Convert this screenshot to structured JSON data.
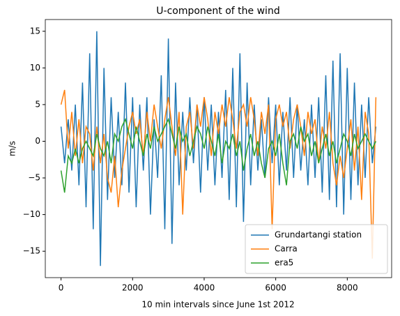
{
  "chart_data": {
    "type": "line",
    "title": "U-component of the wind",
    "xlabel": "10 min intervals since June 1st 2012",
    "ylabel": "m/s",
    "x": [
      0,
      100,
      200,
      300,
      400,
      500,
      600,
      700,
      800,
      900,
      1000,
      1100,
      1200,
      1300,
      1400,
      1500,
      1600,
      1700,
      1800,
      1900,
      2000,
      2100,
      2200,
      2300,
      2400,
      2500,
      2600,
      2700,
      2800,
      2900,
      3000,
      3100,
      3200,
      3300,
      3400,
      3500,
      3600,
      3700,
      3800,
      3900,
      4000,
      4100,
      4200,
      4300,
      4400,
      4500,
      4600,
      4700,
      4800,
      4900,
      5000,
      5100,
      5200,
      5300,
      5400,
      5500,
      5600,
      5700,
      5800,
      5900,
      6000,
      6100,
      6200,
      6300,
      6400,
      6500,
      6600,
      6700,
      6800,
      6900,
      7000,
      7100,
      7200,
      7300,
      7400,
      7500,
      7600,
      7700,
      7800,
      7900,
      8000,
      8100,
      8200,
      8300,
      8400,
      8500,
      8600,
      8700,
      8800
    ],
    "series": [
      {
        "name": "Grundartangi station",
        "color": "#1f77b4",
        "values": [
          2,
          -3,
          3,
          -4,
          5,
          -6,
          8,
          -9,
          12,
          -12,
          15,
          -17,
          10,
          -8,
          6,
          -5,
          4,
          -6,
          8,
          -7,
          6,
          -9,
          5,
          -4,
          6,
          -10,
          3,
          -5,
          9,
          -12,
          14,
          -14,
          8,
          -6,
          4,
          -4,
          6,
          -3,
          5,
          -7,
          6,
          -4,
          5,
          -6,
          4,
          -5,
          7,
          -8,
          10,
          -9,
          12,
          -11,
          8,
          -6,
          5,
          -4,
          3,
          -5,
          6,
          -3,
          5,
          -6,
          4,
          -4,
          6,
          -5,
          5,
          -4,
          3,
          -6,
          5,
          -5,
          6,
          -7,
          9,
          -8,
          11,
          -9,
          12,
          -10,
          10,
          -8,
          8,
          -6,
          5,
          -5,
          6,
          -3,
          2
        ]
      },
      {
        "name": "Carra",
        "color": "#ff7f0e",
        "values": [
          5,
          7,
          -1,
          4,
          -2,
          3,
          -3,
          2,
          1,
          -4,
          2,
          -3,
          1,
          -5,
          -7,
          -2,
          -9,
          -4,
          -1,
          2,
          4,
          1,
          3,
          -2,
          4,
          0,
          5,
          2,
          -1,
          3,
          6,
          2,
          -2,
          4,
          -10,
          2,
          4,
          -1,
          5,
          2,
          6,
          3,
          -2,
          4,
          1,
          5,
          2,
          6,
          3,
          -1,
          4,
          5,
          2,
          6,
          3,
          -2,
          4,
          1,
          5,
          -12,
          3,
          5,
          2,
          4,
          -1,
          3,
          5,
          2,
          -2,
          4,
          1,
          3,
          -3,
          2,
          -1,
          4,
          -3,
          -6,
          -2,
          -5,
          -1,
          3,
          -4,
          2,
          -8,
          4,
          1,
          -16,
          6
        ]
      },
      {
        "name": "era5",
        "color": "#2ca02c",
        "values": [
          -4,
          -7,
          -2,
          -3,
          -1,
          -3,
          -1,
          0,
          -1,
          -2,
          1,
          -1,
          -2,
          0,
          -3,
          1,
          0,
          2,
          3,
          1,
          -1,
          2,
          0,
          -2,
          1,
          -1,
          2,
          0,
          1,
          2,
          3,
          1,
          -1,
          2,
          0,
          1,
          -2,
          0,
          2,
          1,
          -1,
          2,
          0,
          -2,
          1,
          -3,
          0,
          -1,
          1,
          -2,
          0,
          -4,
          -1,
          1,
          -2,
          0,
          -3,
          -5,
          -1,
          0,
          -2,
          1,
          -3,
          -6,
          0,
          1,
          -1,
          2,
          0,
          1,
          -2,
          0,
          -3,
          -1,
          1,
          -2,
          0,
          -3,
          -1,
          1,
          0,
          -2,
          1,
          -1,
          0,
          1,
          0,
          -1,
          0
        ]
      }
    ],
    "xlim": [
      -440,
      9240
    ],
    "ylim": [
      -18.6,
      16.6
    ],
    "xticks": [
      0,
      2000,
      4000,
      6000,
      8000
    ],
    "yticks": [
      {
        "value": -15,
        "label": "−15"
      },
      {
        "value": -10,
        "label": "−10"
      },
      {
        "value": -5,
        "label": "−5"
      },
      0,
      5,
      10,
      15
    ],
    "legend": "lower right"
  }
}
